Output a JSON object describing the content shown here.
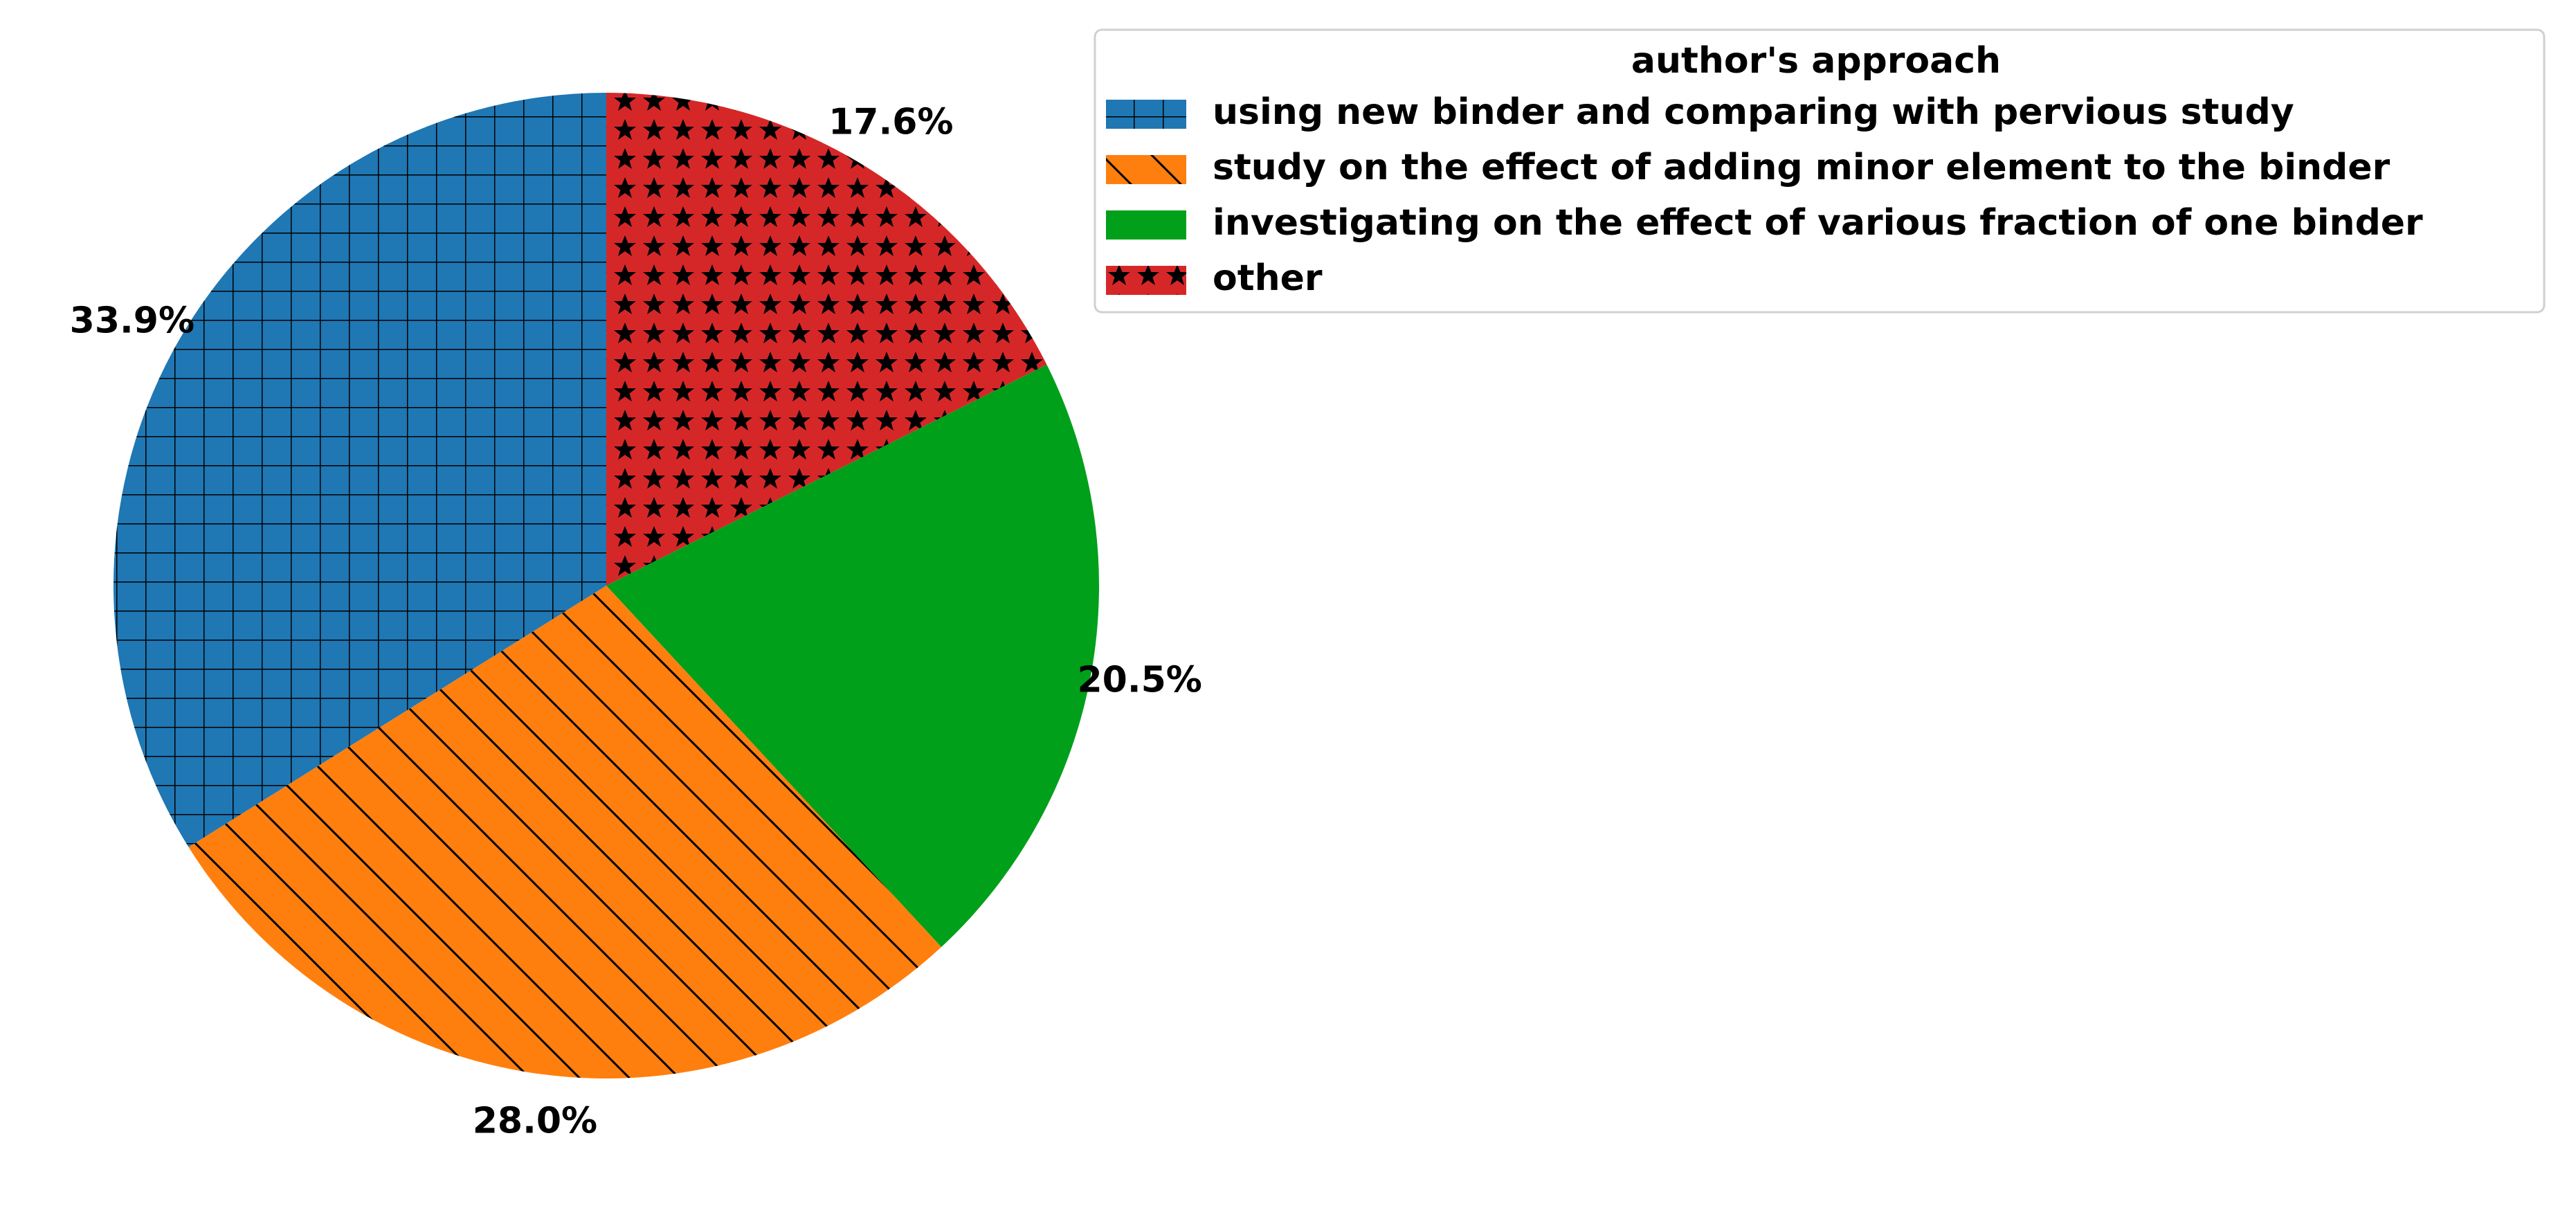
{
  "chart_data": {
    "type": "pie",
    "start_angle_deg": 90,
    "direction": "clockwise",
    "legend": {
      "title": "author's approach",
      "placement": "upper-right"
    },
    "slices": [
      {
        "label": "other",
        "value": 17.6,
        "pct_label": "17.6%",
        "color": "#D62728",
        "hatch": "stars"
      },
      {
        "label": "investigating on the effect of various fraction of one binder",
        "value": 20.5,
        "pct_label": "20.5%",
        "color": "#00A01A",
        "hatch": "none"
      },
      {
        "label": "study on the effect of adding minor element to the binder",
        "value": 28.0,
        "pct_label": "28.0%",
        "color": "#FF7F0E",
        "hatch": "diagonal"
      },
      {
        "label": "using new binder and comparing with pervious study",
        "value": 33.9,
        "pct_label": "33.9%",
        "color": "#1F77B4",
        "hatch": "grid"
      }
    ],
    "legend_order": [
      3,
      2,
      1,
      0
    ]
  }
}
